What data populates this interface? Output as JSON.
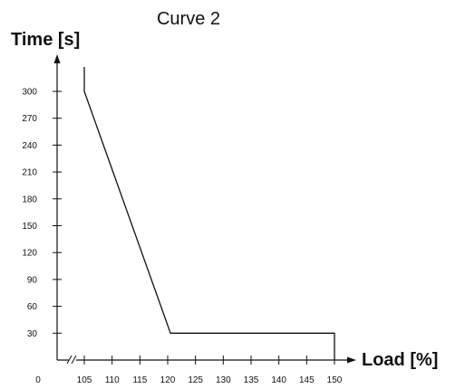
{
  "chart_data": {
    "type": "line",
    "title": "Curve 2",
    "xlabel": "Load [%]",
    "ylabel": "Time [s]",
    "x_origin_label": "0",
    "x_ticks": [
      105,
      110,
      115,
      120,
      125,
      130,
      135,
      140,
      145,
      150
    ],
    "y_ticks": [
      30,
      60,
      90,
      120,
      150,
      180,
      210,
      240,
      270,
      300
    ],
    "xlim": [
      105,
      150
    ],
    "ylim": [
      0,
      300
    ],
    "axis_break": true,
    "grid": false,
    "series": [
      {
        "x": [
          105,
          105,
          120.5,
          150,
          150
        ],
        "y": [
          330,
          300,
          30,
          30,
          0
        ]
      }
    ]
  },
  "colors": {
    "ink": "#111111"
  }
}
